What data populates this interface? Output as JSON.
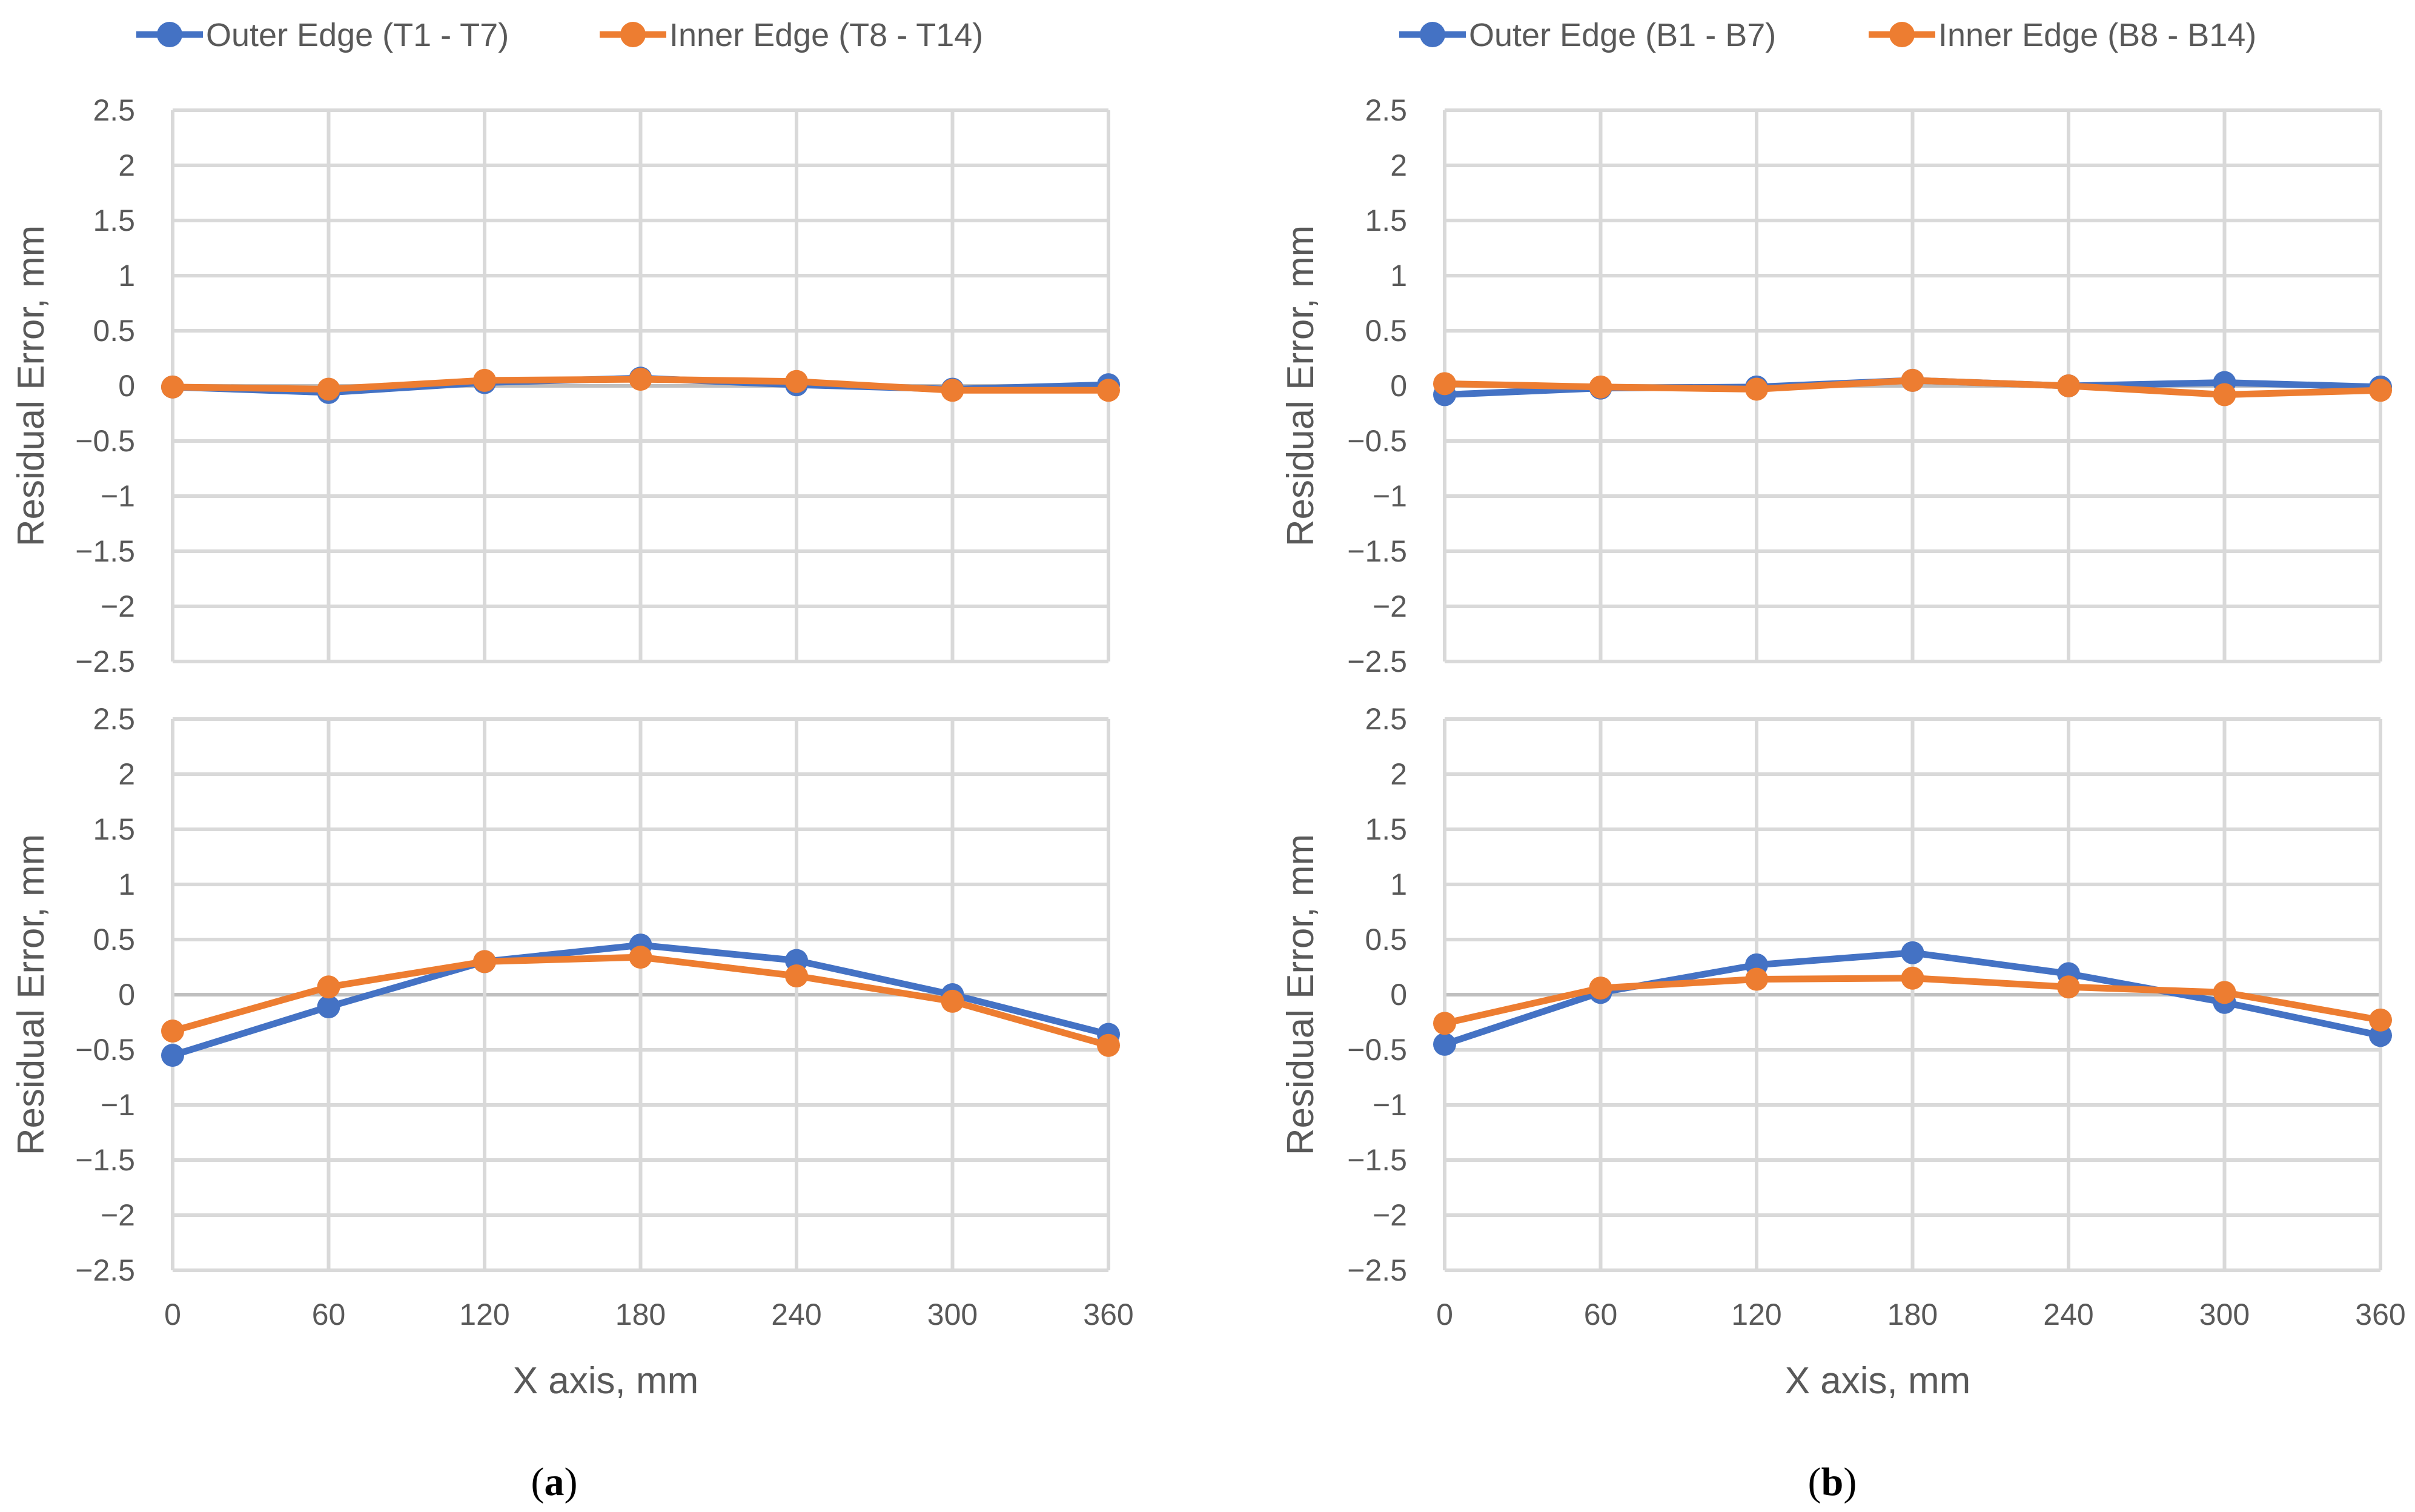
{
  "colors": {
    "outer": "#4472c4",
    "inner": "#ed7d31"
  },
  "panels": [
    {
      "label_letter": "a",
      "label_open": "(",
      "label_close": ")"
    },
    {
      "label_letter": "b",
      "label_open": "(",
      "label_close": ")"
    }
  ],
  "chart_data": [
    {
      "type": "line",
      "panel": "a",
      "position": "top",
      "legend": [
        "Outer Edge (T1 - T7)",
        "Inner Edge (T8 - T14)"
      ],
      "xlabel": "",
      "ylabel": "Residual Error, mm",
      "x": [
        0,
        60,
        120,
        180,
        240,
        300,
        360
      ],
      "xlim": [
        0,
        360
      ],
      "ylim": [
        -2.5,
        2.5
      ],
      "yticks": [
        "2.5",
        "2",
        "1.5",
        "1",
        "0.5",
        "0",
        "−0.5",
        "−1",
        "−1.5",
        "−2",
        "−2.5"
      ],
      "xticks": [],
      "series": [
        {
          "name": "Outer Edge (T1 - T7)",
          "values": [
            -0.01,
            -0.06,
            0.03,
            0.07,
            0.01,
            -0.03,
            0.01
          ]
        },
        {
          "name": "Inner Edge (T8 - T14)",
          "values": [
            -0.01,
            -0.03,
            0.05,
            0.06,
            0.04,
            -0.04,
            -0.04
          ]
        }
      ]
    },
    {
      "type": "line",
      "panel": "a",
      "position": "bottom",
      "xlabel": "X axis, mm",
      "ylabel": "Residual Error, mm",
      "x": [
        0,
        60,
        120,
        180,
        240,
        300,
        360
      ],
      "xlim": [
        0,
        360
      ],
      "ylim": [
        -2.5,
        2.5
      ],
      "yticks": [
        "2.5",
        "2",
        "1.5",
        "1",
        "0.5",
        "0",
        "−0.5",
        "−1",
        "−1.5",
        "−2",
        "−2.5"
      ],
      "xticks": [
        "0",
        "60",
        "120",
        "180",
        "240",
        "300",
        "360"
      ],
      "series": [
        {
          "name": "Outer Edge (T1 - T7)",
          "values": [
            -0.55,
            -0.11,
            0.3,
            0.45,
            0.31,
            0.0,
            -0.36
          ]
        },
        {
          "name": "Inner Edge (T8 - T14)",
          "values": [
            -0.33,
            0.07,
            0.3,
            0.34,
            0.17,
            -0.06,
            -0.46
          ]
        }
      ]
    },
    {
      "type": "line",
      "panel": "b",
      "position": "top",
      "legend": [
        "Outer Edge (B1 - B7)",
        "Inner Edge (B8 - B14)"
      ],
      "xlabel": "",
      "ylabel": "Residual Error, mm",
      "x": [
        0,
        60,
        120,
        180,
        240,
        300,
        360
      ],
      "xlim": [
        0,
        360
      ],
      "ylim": [
        -2.5,
        2.5
      ],
      "yticks": [
        "2.5",
        "2",
        "1.5",
        "1",
        "0.5",
        "0",
        "−0.5",
        "−1",
        "−1.5",
        "−2",
        "−2.5"
      ],
      "xticks": [],
      "series": [
        {
          "name": "Outer Edge (B1 - B7)",
          "values": [
            -0.08,
            -0.02,
            -0.01,
            0.05,
            0.0,
            0.03,
            -0.01
          ]
        },
        {
          "name": "Inner Edge (B8 - B14)",
          "values": [
            0.02,
            -0.01,
            -0.03,
            0.05,
            0.0,
            -0.08,
            -0.04
          ]
        }
      ]
    },
    {
      "type": "line",
      "panel": "b",
      "position": "bottom",
      "xlabel": "X axis, mm",
      "ylabel": "Residual Error, mm",
      "x": [
        0,
        60,
        120,
        180,
        240,
        300,
        360
      ],
      "xlim": [
        0,
        360
      ],
      "ylim": [
        -2.5,
        2.5
      ],
      "yticks": [
        "2.5",
        "2",
        "1.5",
        "1",
        "0.5",
        "0",
        "−0.5",
        "−1",
        "−1.5",
        "−2",
        "−2.5"
      ],
      "xticks": [
        "0",
        "60",
        "120",
        "180",
        "240",
        "300",
        "360"
      ],
      "series": [
        {
          "name": "Outer Edge (B1 - B7)",
          "values": [
            -0.45,
            0.02,
            0.27,
            0.38,
            0.19,
            -0.07,
            -0.37
          ]
        },
        {
          "name": "Inner Edge (B8 - B14)",
          "values": [
            -0.26,
            0.06,
            0.14,
            0.15,
            0.07,
            0.02,
            -0.23
          ]
        }
      ]
    }
  ]
}
